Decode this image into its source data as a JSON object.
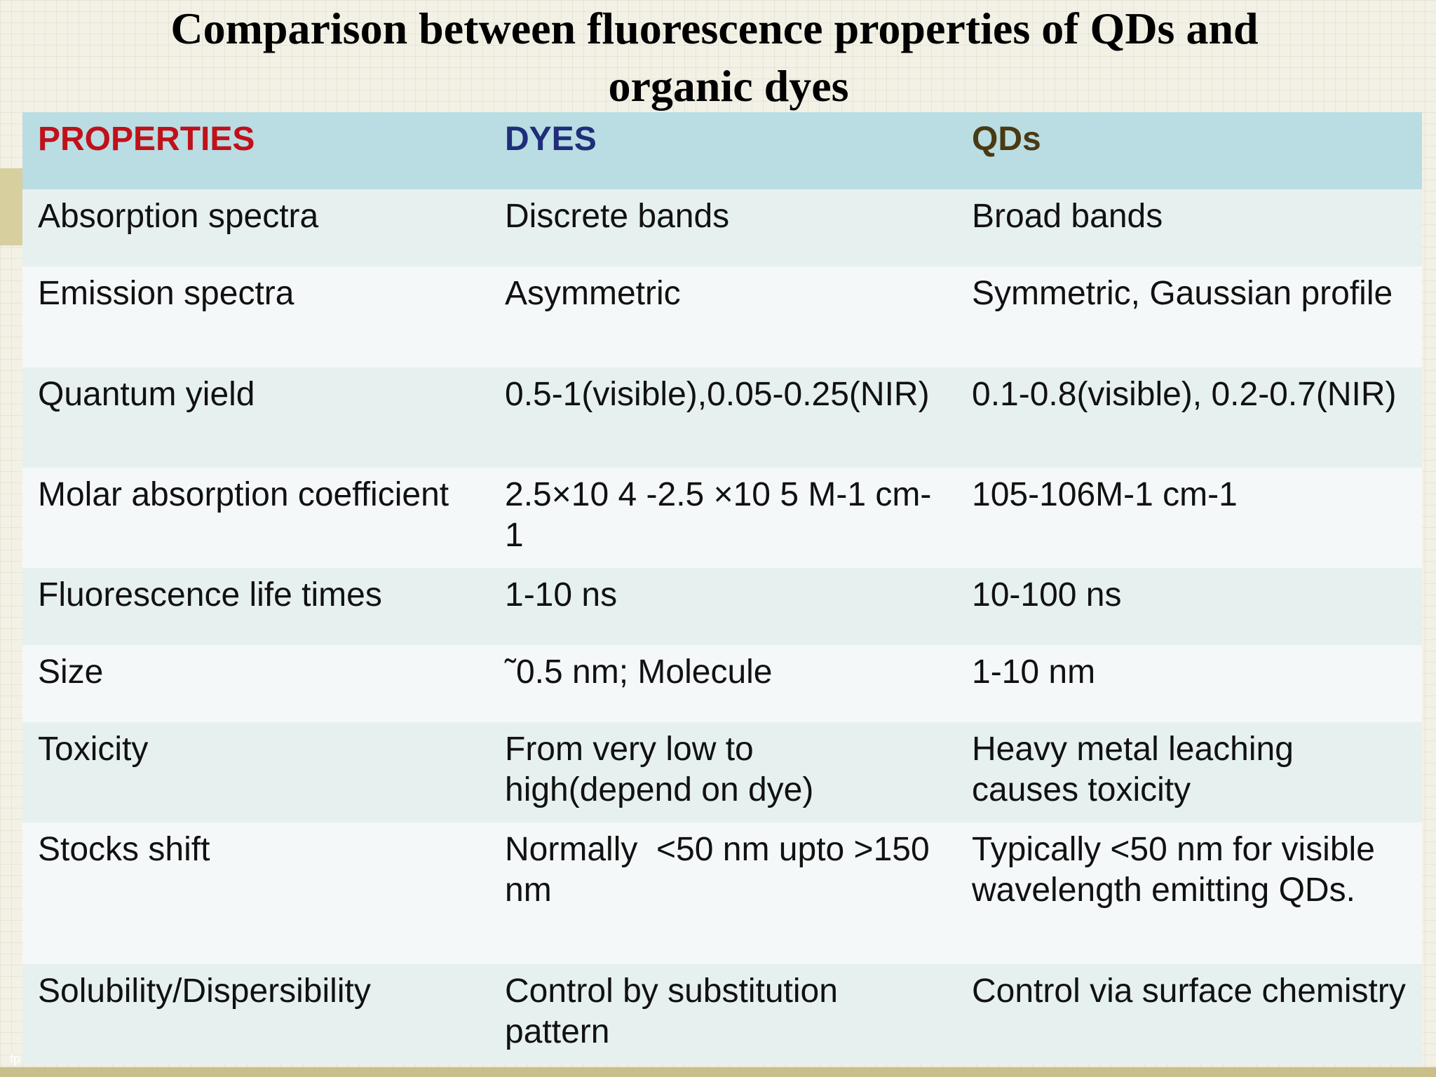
{
  "title": {
    "line1": "Comparison between fluorescence properties of QDs and",
    "line2": "organic dyes"
  },
  "footer": {
    "corner_mark": "fp"
  },
  "colors": {
    "header_properties": "#c0111b",
    "header_dyes": "#1f2e7a",
    "header_qds": "#4a3a12",
    "header_row_bg": "#b9dde2"
  },
  "table": {
    "headers": [
      "PROPERTIES",
      "DYES",
      "QDs"
    ],
    "rows": [
      [
        "Absorption spectra",
        "Discrete bands",
        "Broad bands"
      ],
      [
        "Emission spectra",
        "Asymmetric",
        "Symmetric, Gaussian profile"
      ],
      [
        "Quantum yield",
        "0.5-1(visible),0.05-0.25(NIR)",
        "0.1-0.8(visible), 0.2-0.7(NIR)"
      ],
      [
        "Molar absorption coefficient",
        "2.5×10 4 -2.5 ×10 5 M-1 cm-1",
        "105-106M-1 cm-1"
      ],
      [
        "Fluorescence life times",
        "1-10 ns",
        "10-100 ns"
      ],
      [
        "Size",
        "˜0.5 nm; Molecule",
        "1-10 nm"
      ],
      [
        "Toxicity",
        "From very low to high(depend on dye)",
        "Heavy metal leaching causes toxicity"
      ],
      [
        "Stocks shift",
        "Normally  <50 nm upto >150 nm",
        "Typically <50 nm for visible wavelength emitting QDs."
      ],
      [
        "Solubility/Dispersibility",
        "Control by substitution pattern",
        "Control via surface chemistry"
      ]
    ]
  }
}
